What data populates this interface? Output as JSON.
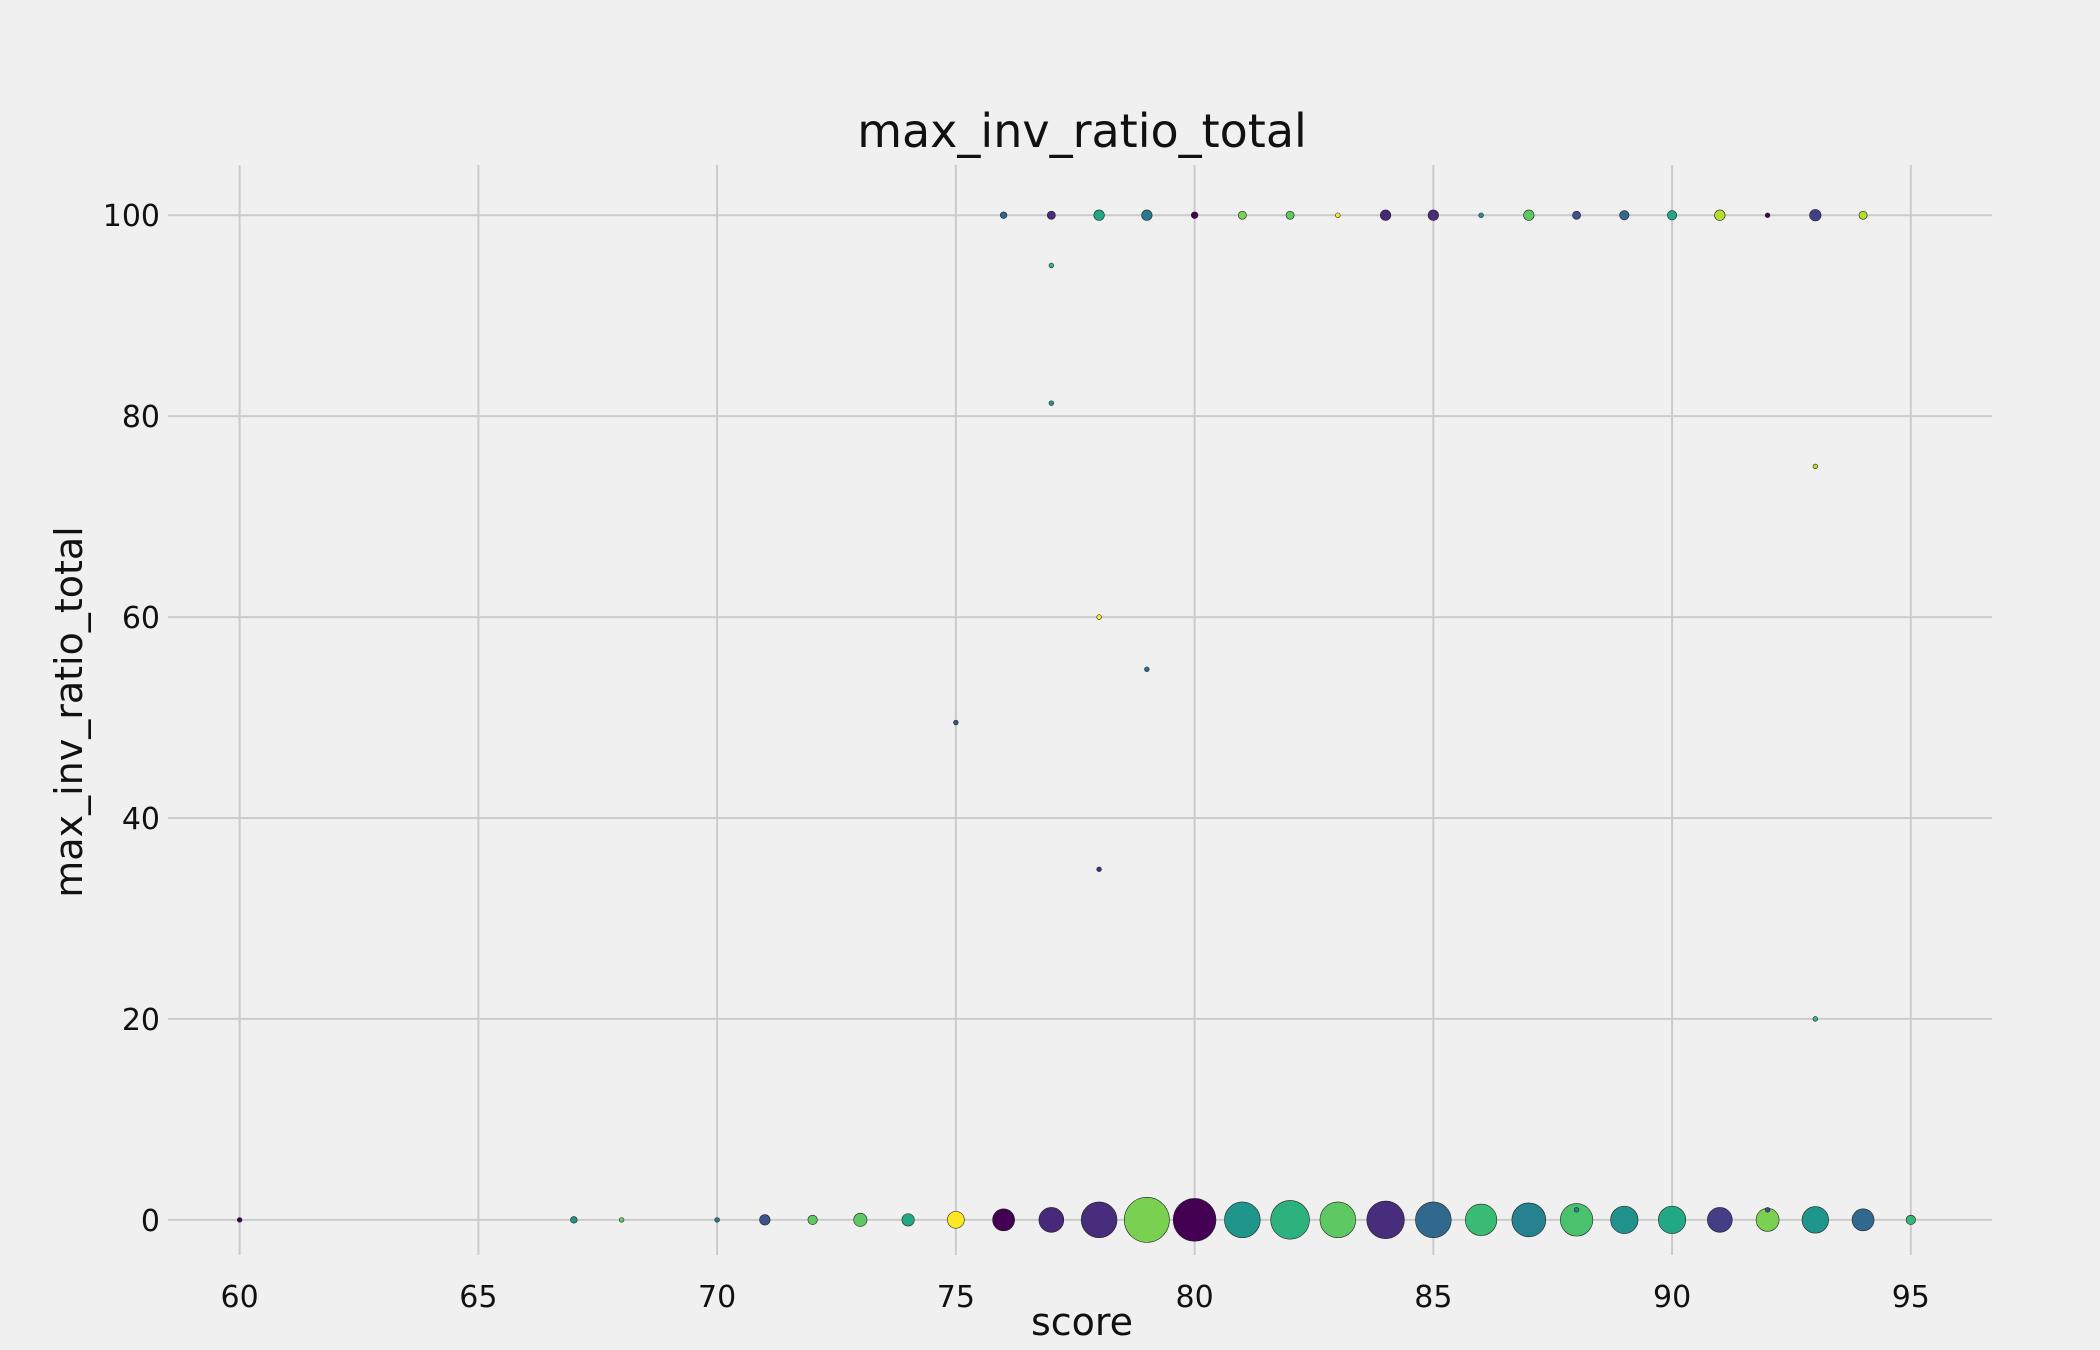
{
  "chart_data": {
    "type": "scatter",
    "title": "max_inv_ratio_total",
    "xlabel": "score",
    "ylabel": "max_inv_ratio_total",
    "xlim": [
      58.5,
      96.7
    ],
    "ylim": [
      -3.5,
      105
    ],
    "xticks": [
      60,
      65,
      70,
      75,
      80,
      85,
      90,
      95
    ],
    "yticks": [
      0,
      20,
      40,
      60,
      80,
      100
    ],
    "grid": true,
    "legend": "none",
    "points": [
      {
        "x": 60,
        "y": 0,
        "size": 1,
        "color": "#440154"
      },
      {
        "x": 67,
        "y": 0,
        "size": 2,
        "color": "#21918c"
      },
      {
        "x": 68,
        "y": 0,
        "size": 1,
        "color": "#5ec962"
      },
      {
        "x": 70,
        "y": 0,
        "size": 1,
        "color": "#2a788e"
      },
      {
        "x": 71,
        "y": 0,
        "size": 5,
        "color": "#3b528b"
      },
      {
        "x": 72,
        "y": 0,
        "size": 4,
        "color": "#5ec962"
      },
      {
        "x": 73,
        "y": 0,
        "size": 8,
        "color": "#5ec962"
      },
      {
        "x": 74,
        "y": 0,
        "size": 7,
        "color": "#22a884"
      },
      {
        "x": 75,
        "y": 0,
        "size": 13,
        "color": "#fde725"
      },
      {
        "x": 76,
        "y": 0,
        "size": 22,
        "color": "#440154"
      },
      {
        "x": 77,
        "y": 0,
        "size": 28,
        "color": "#482878"
      },
      {
        "x": 78,
        "y": 0,
        "size": 58,
        "color": "#472d7b"
      },
      {
        "x": 79,
        "y": 0,
        "size": 92,
        "color": "#7ad151"
      },
      {
        "x": 80,
        "y": 0,
        "size": 83,
        "color": "#440154"
      },
      {
        "x": 81,
        "y": 0,
        "size": 58,
        "color": "#1f968b"
      },
      {
        "x": 82,
        "y": 0,
        "size": 68,
        "color": "#2db27d"
      },
      {
        "x": 83,
        "y": 0,
        "size": 58,
        "color": "#5ec962"
      },
      {
        "x": 84,
        "y": 0,
        "size": 64,
        "color": "#472d7b"
      },
      {
        "x": 85,
        "y": 0,
        "size": 58,
        "color": "#31688e"
      },
      {
        "x": 86,
        "y": 0,
        "size": 45,
        "color": "#3bbc74"
      },
      {
        "x": 87,
        "y": 0,
        "size": 52,
        "color": "#26828e"
      },
      {
        "x": 88,
        "y": 0,
        "size": 48,
        "color": "#4ac16d"
      },
      {
        "x": 89,
        "y": 0,
        "size": 34,
        "color": "#21918c"
      },
      {
        "x": 90,
        "y": 0,
        "size": 34,
        "color": "#22a884"
      },
      {
        "x": 91,
        "y": 0,
        "size": 28,
        "color": "#433e85"
      },
      {
        "x": 92,
        "y": 0,
        "size": 24,
        "color": "#7ad151"
      },
      {
        "x": 93,
        "y": 0,
        "size": 32,
        "color": "#1f968b"
      },
      {
        "x": 94,
        "y": 0,
        "size": 22,
        "color": "#31688e"
      },
      {
        "x": 95,
        "y": 0,
        "size": 4,
        "color": "#35b779"
      },
      {
        "x": 88,
        "y": 1,
        "size": 1,
        "color": "#26828e"
      },
      {
        "x": 92,
        "y": 1,
        "size": 1,
        "color": "#3b528b"
      },
      {
        "x": 76,
        "y": 100,
        "size": 2,
        "color": "#31688e"
      },
      {
        "x": 77,
        "y": 100,
        "size": 3,
        "color": "#472d7b"
      },
      {
        "x": 78,
        "y": 100,
        "size": 5,
        "color": "#22a884"
      },
      {
        "x": 79,
        "y": 100,
        "size": 5,
        "color": "#2a788e"
      },
      {
        "x": 80,
        "y": 100,
        "size": 2,
        "color": "#440154"
      },
      {
        "x": 81,
        "y": 100,
        "size": 3,
        "color": "#7ad151"
      },
      {
        "x": 82,
        "y": 100,
        "size": 3,
        "color": "#5ec962"
      },
      {
        "x": 83,
        "y": 100,
        "size": 1,
        "color": "#fde725"
      },
      {
        "x": 84,
        "y": 100,
        "size": 5,
        "color": "#482878"
      },
      {
        "x": 85,
        "y": 100,
        "size": 5,
        "color": "#472d7b"
      },
      {
        "x": 86,
        "y": 100,
        "size": 1,
        "color": "#21918c"
      },
      {
        "x": 87,
        "y": 100,
        "size": 5,
        "color": "#5ec962"
      },
      {
        "x": 88,
        "y": 100,
        "size": 3,
        "color": "#3b528b"
      },
      {
        "x": 89,
        "y": 100,
        "size": 4,
        "color": "#31688e"
      },
      {
        "x": 90,
        "y": 100,
        "size": 4,
        "color": "#22a884"
      },
      {
        "x": 91,
        "y": 100,
        "size": 5,
        "color": "#b5de2b"
      },
      {
        "x": 92,
        "y": 100,
        "size": 1,
        "color": "#440154"
      },
      {
        "x": 93,
        "y": 100,
        "size": 6,
        "color": "#433e85"
      },
      {
        "x": 94,
        "y": 100,
        "size": 3,
        "color": "#b5de2b"
      },
      {
        "x": 77,
        "y": 95,
        "size": 1,
        "color": "#35b779"
      },
      {
        "x": 77,
        "y": 81.3,
        "size": 1,
        "color": "#1f968b"
      },
      {
        "x": 93,
        "y": 75,
        "size": 1,
        "color": "#b5de2b"
      },
      {
        "x": 78,
        "y": 60,
        "size": 1,
        "color": "#fde725"
      },
      {
        "x": 79,
        "y": 54.8,
        "size": 1,
        "color": "#31688e"
      },
      {
        "x": 75,
        "y": 49.5,
        "size": 1,
        "color": "#3b528b"
      },
      {
        "x": 78,
        "y": 34.9,
        "size": 1,
        "color": "#472d7b"
      },
      {
        "x": 93,
        "y": 20,
        "size": 1,
        "color": "#35b779"
      }
    ]
  }
}
